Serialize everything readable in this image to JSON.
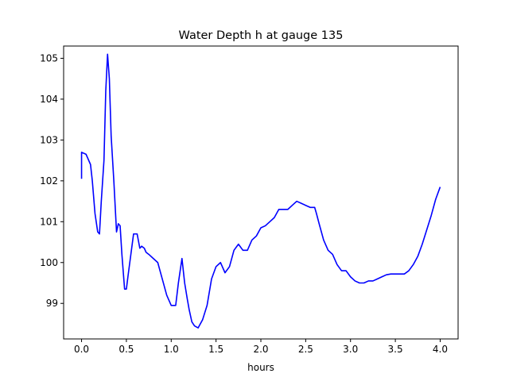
{
  "chart_data": {
    "type": "line",
    "title": "Water Depth h at gauge 135",
    "xlabel": "hours",
    "ylabel": "",
    "xlim": [
      -0.2,
      4.2
    ],
    "ylim": [
      98.13,
      105.3
    ],
    "xticks": [
      0.0,
      0.5,
      1.0,
      1.5,
      2.0,
      2.5,
      3.0,
      3.5,
      4.0
    ],
    "xtick_labels": [
      "0.0",
      "0.5",
      "1.0",
      "1.5",
      "2.0",
      "2.5",
      "3.0",
      "3.5",
      "4.0"
    ],
    "yticks": [
      99,
      100,
      101,
      102,
      103,
      104,
      105
    ],
    "ytick_labels": [
      "99",
      "100",
      "101",
      "102",
      "103",
      "104",
      "105"
    ],
    "grid": false,
    "legend": "none",
    "series": [
      {
        "color": "#0000ff",
        "x": [
          0.0,
          0.0,
          0.05,
          0.1,
          0.12,
          0.15,
          0.18,
          0.2,
          0.22,
          0.25,
          0.27,
          0.29,
          0.31,
          0.33,
          0.36,
          0.39,
          0.41,
          0.43,
          0.45,
          0.48,
          0.5,
          0.52,
          0.55,
          0.58,
          0.62,
          0.65,
          0.67,
          0.7,
          0.72,
          0.75,
          0.8,
          0.85,
          0.9,
          0.95,
          1.0,
          1.05,
          1.08,
          1.12,
          1.15,
          1.18,
          1.2,
          1.23,
          1.26,
          1.3,
          1.35,
          1.4,
          1.45,
          1.5,
          1.55,
          1.6,
          1.65,
          1.7,
          1.75,
          1.8,
          1.85,
          1.9,
          1.95,
          2.0,
          2.05,
          2.1,
          2.15,
          2.2,
          2.25,
          2.3,
          2.35,
          2.4,
          2.45,
          2.5,
          2.55,
          2.6,
          2.62,
          2.65,
          2.7,
          2.75,
          2.8,
          2.85,
          2.9,
          2.95,
          3.0,
          3.05,
          3.1,
          3.15,
          3.2,
          3.25,
          3.3,
          3.35,
          3.4,
          3.45,
          3.5,
          3.55,
          3.6,
          3.65,
          3.7,
          3.75,
          3.8,
          3.85,
          3.9,
          3.95,
          4.0
        ],
        "y": [
          102.05,
          102.7,
          102.65,
          102.4,
          102.0,
          101.2,
          100.75,
          100.7,
          101.5,
          102.5,
          104.2,
          105.1,
          104.5,
          103.1,
          102.0,
          100.75,
          100.95,
          100.9,
          100.2,
          99.35,
          99.35,
          99.7,
          100.2,
          100.7,
          100.7,
          100.35,
          100.4,
          100.35,
          100.25,
          100.2,
          100.1,
          100.0,
          99.6,
          99.2,
          98.95,
          98.95,
          99.5,
          100.1,
          99.5,
          99.1,
          98.85,
          98.55,
          98.45,
          98.4,
          98.6,
          98.95,
          99.6,
          99.9,
          100.0,
          99.75,
          99.9,
          100.3,
          100.45,
          100.3,
          100.3,
          100.55,
          100.65,
          100.85,
          100.9,
          101.0,
          101.1,
          101.3,
          101.3,
          101.3,
          101.4,
          101.5,
          101.45,
          101.4,
          101.35,
          101.35,
          101.2,
          100.95,
          100.55,
          100.3,
          100.2,
          99.95,
          99.8,
          99.8,
          99.65,
          99.55,
          99.5,
          99.5,
          99.55,
          99.55,
          99.6,
          99.65,
          99.7,
          99.72,
          99.72,
          99.72,
          99.72,
          99.8,
          99.95,
          100.15,
          100.45,
          100.8,
          101.15,
          101.55,
          101.85
        ]
      }
    ]
  }
}
